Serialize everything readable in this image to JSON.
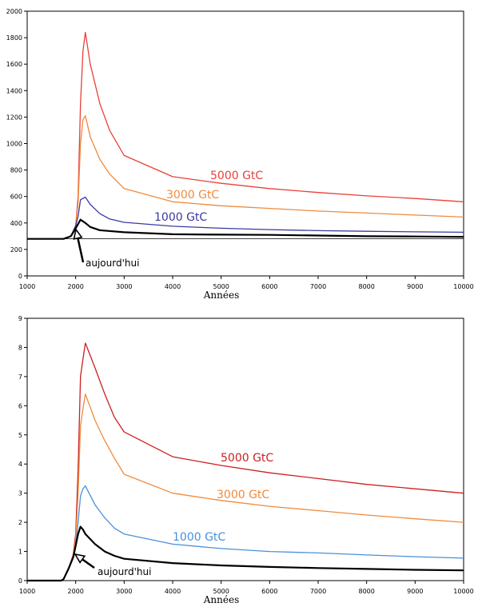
{
  "chart_data": [
    {
      "type": "line",
      "xlabel": "Années",
      "ylabel": "",
      "xlim": [
        1000,
        10000
      ],
      "ylim": [
        0,
        2000
      ],
      "xticks": [
        1000,
        2000,
        3000,
        4000,
        5000,
        6000,
        7000,
        8000,
        9000,
        10000
      ],
      "yticks": [
        0,
        200,
        400,
        600,
        800,
        1000,
        1200,
        1400,
        1600,
        1800,
        2000
      ],
      "grid": false,
      "legend": "none",
      "baseline": 280,
      "annotation": {
        "text": "aujourd'hui",
        "x": 2000,
        "y": 380
      },
      "series": [
        {
          "name": "5000 GtC",
          "color": "#e8413a",
          "x": [
            1000,
            1750,
            1900,
            2000,
            2050,
            2100,
            2150,
            2200,
            2300,
            2500,
            2700,
            3000,
            4000,
            5000,
            6000,
            7000,
            8000,
            9000,
            10000
          ],
          "y": [
            280,
            280,
            300,
            380,
            600,
            1300,
            1700,
            1840,
            1600,
            1300,
            1100,
            910,
            750,
            700,
            660,
            630,
            605,
            585,
            560
          ]
        },
        {
          "name": "3000 GtC",
          "color": "#f08a3c",
          "x": [
            1000,
            1750,
            1900,
            2000,
            2050,
            2100,
            2150,
            2200,
            2300,
            2500,
            2700,
            3000,
            4000,
            5000,
            6000,
            7000,
            8000,
            9000,
            10000
          ],
          "y": [
            280,
            280,
            300,
            380,
            550,
            1000,
            1180,
            1210,
            1050,
            880,
            770,
            660,
            560,
            530,
            510,
            490,
            475,
            460,
            445
          ]
        },
        {
          "name": "1000 GtC",
          "color": "#3a3aa0",
          "x": [
            1000,
            1750,
            1900,
            2000,
            2050,
            2100,
            2200,
            2300,
            2500,
            2700,
            3000,
            4000,
            5000,
            6000,
            7000,
            8000,
            9000,
            10000
          ],
          "y": [
            280,
            280,
            300,
            380,
            450,
            575,
            595,
            540,
            470,
            430,
            405,
            375,
            360,
            350,
            342,
            337,
            333,
            330
          ]
        },
        {
          "name": "",
          "color": "#000000",
          "x": [
            1000,
            1750,
            1900,
            2000,
            2100,
            2200,
            2300,
            2500,
            3000,
            4000,
            5000,
            6000,
            7000,
            8000,
            9000,
            10000
          ],
          "y": [
            280,
            280,
            300,
            360,
            425,
            400,
            370,
            345,
            330,
            315,
            312,
            310,
            305,
            300,
            298,
            295
          ]
        }
      ]
    },
    {
      "type": "line",
      "xlabel": "Années",
      "ylabel": "",
      "xlim": [
        1000,
        10000
      ],
      "ylim": [
        0,
        9
      ],
      "xticks": [
        1000,
        2000,
        3000,
        4000,
        5000,
        6000,
        7000,
        8000,
        9000,
        10000
      ],
      "yticks": [
        0,
        1,
        2,
        3,
        4,
        5,
        6,
        7,
        8,
        9
      ],
      "grid": false,
      "legend": "none",
      "annotation": {
        "text": "aujourd'hui",
        "x": 2000,
        "y": 0.9
      },
      "series": [
        {
          "name": "5000 GtC",
          "color": "#cc2020",
          "x": [
            1000,
            1700,
            1750,
            1850,
            1950,
            2000,
            2050,
            2100,
            2150,
            2200,
            2400,
            2600,
            2800,
            3000,
            4000,
            5000,
            6000,
            7000,
            8000,
            9000,
            10000
          ],
          "y": [
            0,
            0,
            0.05,
            0.4,
            0.9,
            1.6,
            3.8,
            7.0,
            7.6,
            8.15,
            7.3,
            6.4,
            5.6,
            5.1,
            4.25,
            3.95,
            3.7,
            3.5,
            3.3,
            3.15,
            3.0
          ]
        },
        {
          "name": "3000 GtC",
          "color": "#f08a3c",
          "x": [
            1000,
            1700,
            1750,
            1850,
            1950,
            2000,
            2050,
            2100,
            2150,
            2200,
            2400,
            2600,
            2800,
            3000,
            4000,
            5000,
            6000,
            7000,
            8000,
            9000,
            10000
          ],
          "y": [
            0,
            0,
            0.05,
            0.4,
            0.9,
            1.4,
            3.0,
            5.3,
            5.9,
            6.4,
            5.5,
            4.8,
            4.2,
            3.65,
            3.0,
            2.75,
            2.55,
            2.4,
            2.25,
            2.12,
            2.0
          ]
        },
        {
          "name": "1000 GtC",
          "color": "#4a90d9",
          "x": [
            1000,
            1700,
            1750,
            1850,
            1950,
            2000,
            2050,
            2100,
            2150,
            2200,
            2400,
            2600,
            2800,
            3000,
            4000,
            5000,
            6000,
            7000,
            8000,
            9000,
            10000
          ],
          "y": [
            0,
            0,
            0.05,
            0.4,
            0.8,
            1.2,
            2.0,
            2.9,
            3.15,
            3.25,
            2.6,
            2.15,
            1.8,
            1.6,
            1.25,
            1.1,
            1.0,
            0.95,
            0.88,
            0.82,
            0.77
          ]
        },
        {
          "name": "",
          "color": "#000000",
          "x": [
            1000,
            1700,
            1750,
            1850,
            1950,
            2000,
            2050,
            2100,
            2150,
            2200,
            2400,
            2600,
            2800,
            3000,
            4000,
            5000,
            6000,
            7000,
            8000,
            9000,
            10000
          ],
          "y": [
            0,
            0,
            0.05,
            0.4,
            0.8,
            1.2,
            1.6,
            1.85,
            1.75,
            1.6,
            1.25,
            1.0,
            0.85,
            0.75,
            0.6,
            0.52,
            0.47,
            0.43,
            0.4,
            0.37,
            0.35
          ]
        }
      ]
    }
  ]
}
